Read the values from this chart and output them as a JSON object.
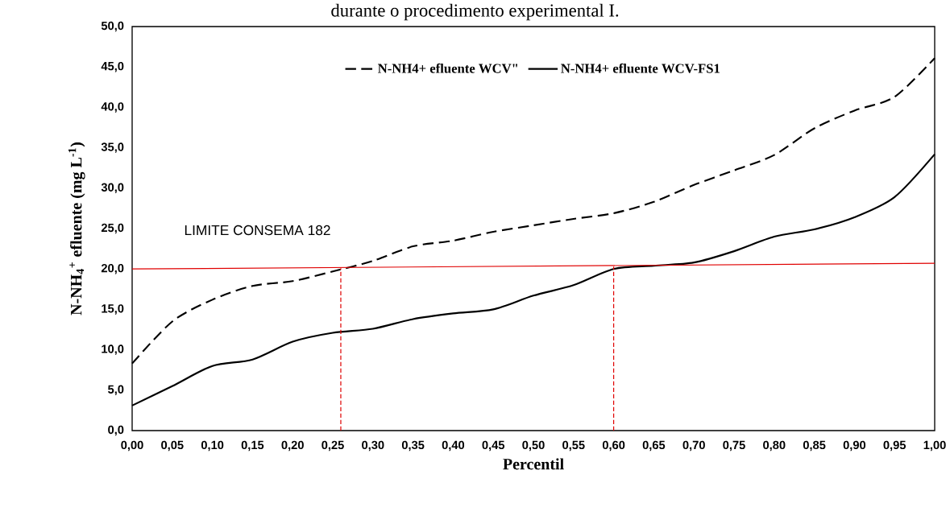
{
  "chart_data": {
    "type": "line",
    "title": "durante o procedimento experimental I.",
    "xlabel": "Percentil",
    "ylabel": "N-NH$_{4}$$^{+}$ efluente (mg L$^{-1}$)",
    "xlim": [
      0,
      1
    ],
    "ylim": [
      0,
      50
    ],
    "xticks": [
      {
        "value": 0,
        "label": "0,00"
      },
      {
        "value": 0.05,
        "label": "0,05"
      },
      {
        "value": 0.1,
        "label": "0,10"
      },
      {
        "value": 0.15,
        "label": "0,15"
      },
      {
        "value": 0.2,
        "label": "0,20"
      },
      {
        "value": 0.25,
        "label": "0,25"
      },
      {
        "value": 0.3,
        "label": "0,30"
      },
      {
        "value": 0.35,
        "label": "0,35"
      },
      {
        "value": 0.4,
        "label": "0,40"
      },
      {
        "value": 0.45,
        "label": "0,45"
      },
      {
        "value": 0.5,
        "label": "0,50"
      },
      {
        "value": 0.55,
        "label": "0,55"
      },
      {
        "value": 0.6,
        "label": "0,60"
      },
      {
        "value": 0.65,
        "label": "0,65"
      },
      {
        "value": 0.7,
        "label": "0,70"
      },
      {
        "value": 0.75,
        "label": "0,75"
      },
      {
        "value": 0.8,
        "label": "0,80"
      },
      {
        "value": 0.85,
        "label": "0,85"
      },
      {
        "value": 0.9,
        "label": "0,90"
      },
      {
        "value": 0.95,
        "label": "0,95"
      },
      {
        "value": 1,
        "label": "1,00"
      }
    ],
    "yticks": [
      {
        "value": 0,
        "label": "0,0"
      },
      {
        "value": 5,
        "label": "5,0"
      },
      {
        "value": 10,
        "label": "10,0"
      },
      {
        "value": 15,
        "label": "15,0"
      },
      {
        "value": 20,
        "label": "20,0"
      },
      {
        "value": 25,
        "label": "25,0"
      },
      {
        "value": 30,
        "label": "30,0"
      },
      {
        "value": 35,
        "label": "35,0"
      },
      {
        "value": 40,
        "label": "40,0"
      },
      {
        "value": 45,
        "label": "45,0"
      },
      {
        "value": 50,
        "label": "50,0"
      }
    ],
    "x": [
      0,
      0.05,
      0.1,
      0.15,
      0.2,
      0.25,
      0.3,
      0.35,
      0.4,
      0.45,
      0.5,
      0.55,
      0.6,
      0.65,
      0.7,
      0.75,
      0.8,
      0.85,
      0.9,
      0.95,
      1
    ],
    "series": [
      {
        "name": "N-NH4+ efluente WCV\"",
        "color": "#000000",
        "line_style": "dashed",
        "values": [
          8.3,
          13.5,
          16.2,
          17.9,
          18.5,
          19.7,
          21.0,
          22.8,
          23.5,
          24.6,
          25.4,
          26.2,
          26.9,
          28.3,
          30.4,
          32.2,
          34.1,
          37.4,
          39.6,
          41.3,
          46.1
        ]
      },
      {
        "name": "N-NH4+ efluente WCV-FS1",
        "color": "#000000",
        "line_style": "solid",
        "values": [
          3.1,
          5.5,
          8.0,
          8.8,
          11.0,
          12.1,
          12.6,
          13.8,
          14.5,
          15.0,
          16.7,
          18.0,
          20.0,
          20.4,
          20.8,
          22.2,
          24.0,
          24.9,
          26.4,
          28.9,
          34.2
        ]
      },
      {
        "color": "#e00000",
        "line_style": "solid",
        "x": [
          0,
          1
        ],
        "values": [
          20.0,
          20.7
        ]
      },
      {
        "color": "#e00000",
        "line_style": "dashed",
        "x": [
          0.26,
          0.26
        ],
        "values": [
          0,
          20.1
        ]
      },
      {
        "color": "#e00000",
        "line_style": "dashed",
        "x": [
          0.6,
          0.6
        ],
        "values": [
          0,
          20.3
        ]
      }
    ],
    "annotations": [
      "LIMITE CONSEMA 182"
    ],
    "legend": "top",
    "grid": false,
    "marker": "none"
  }
}
